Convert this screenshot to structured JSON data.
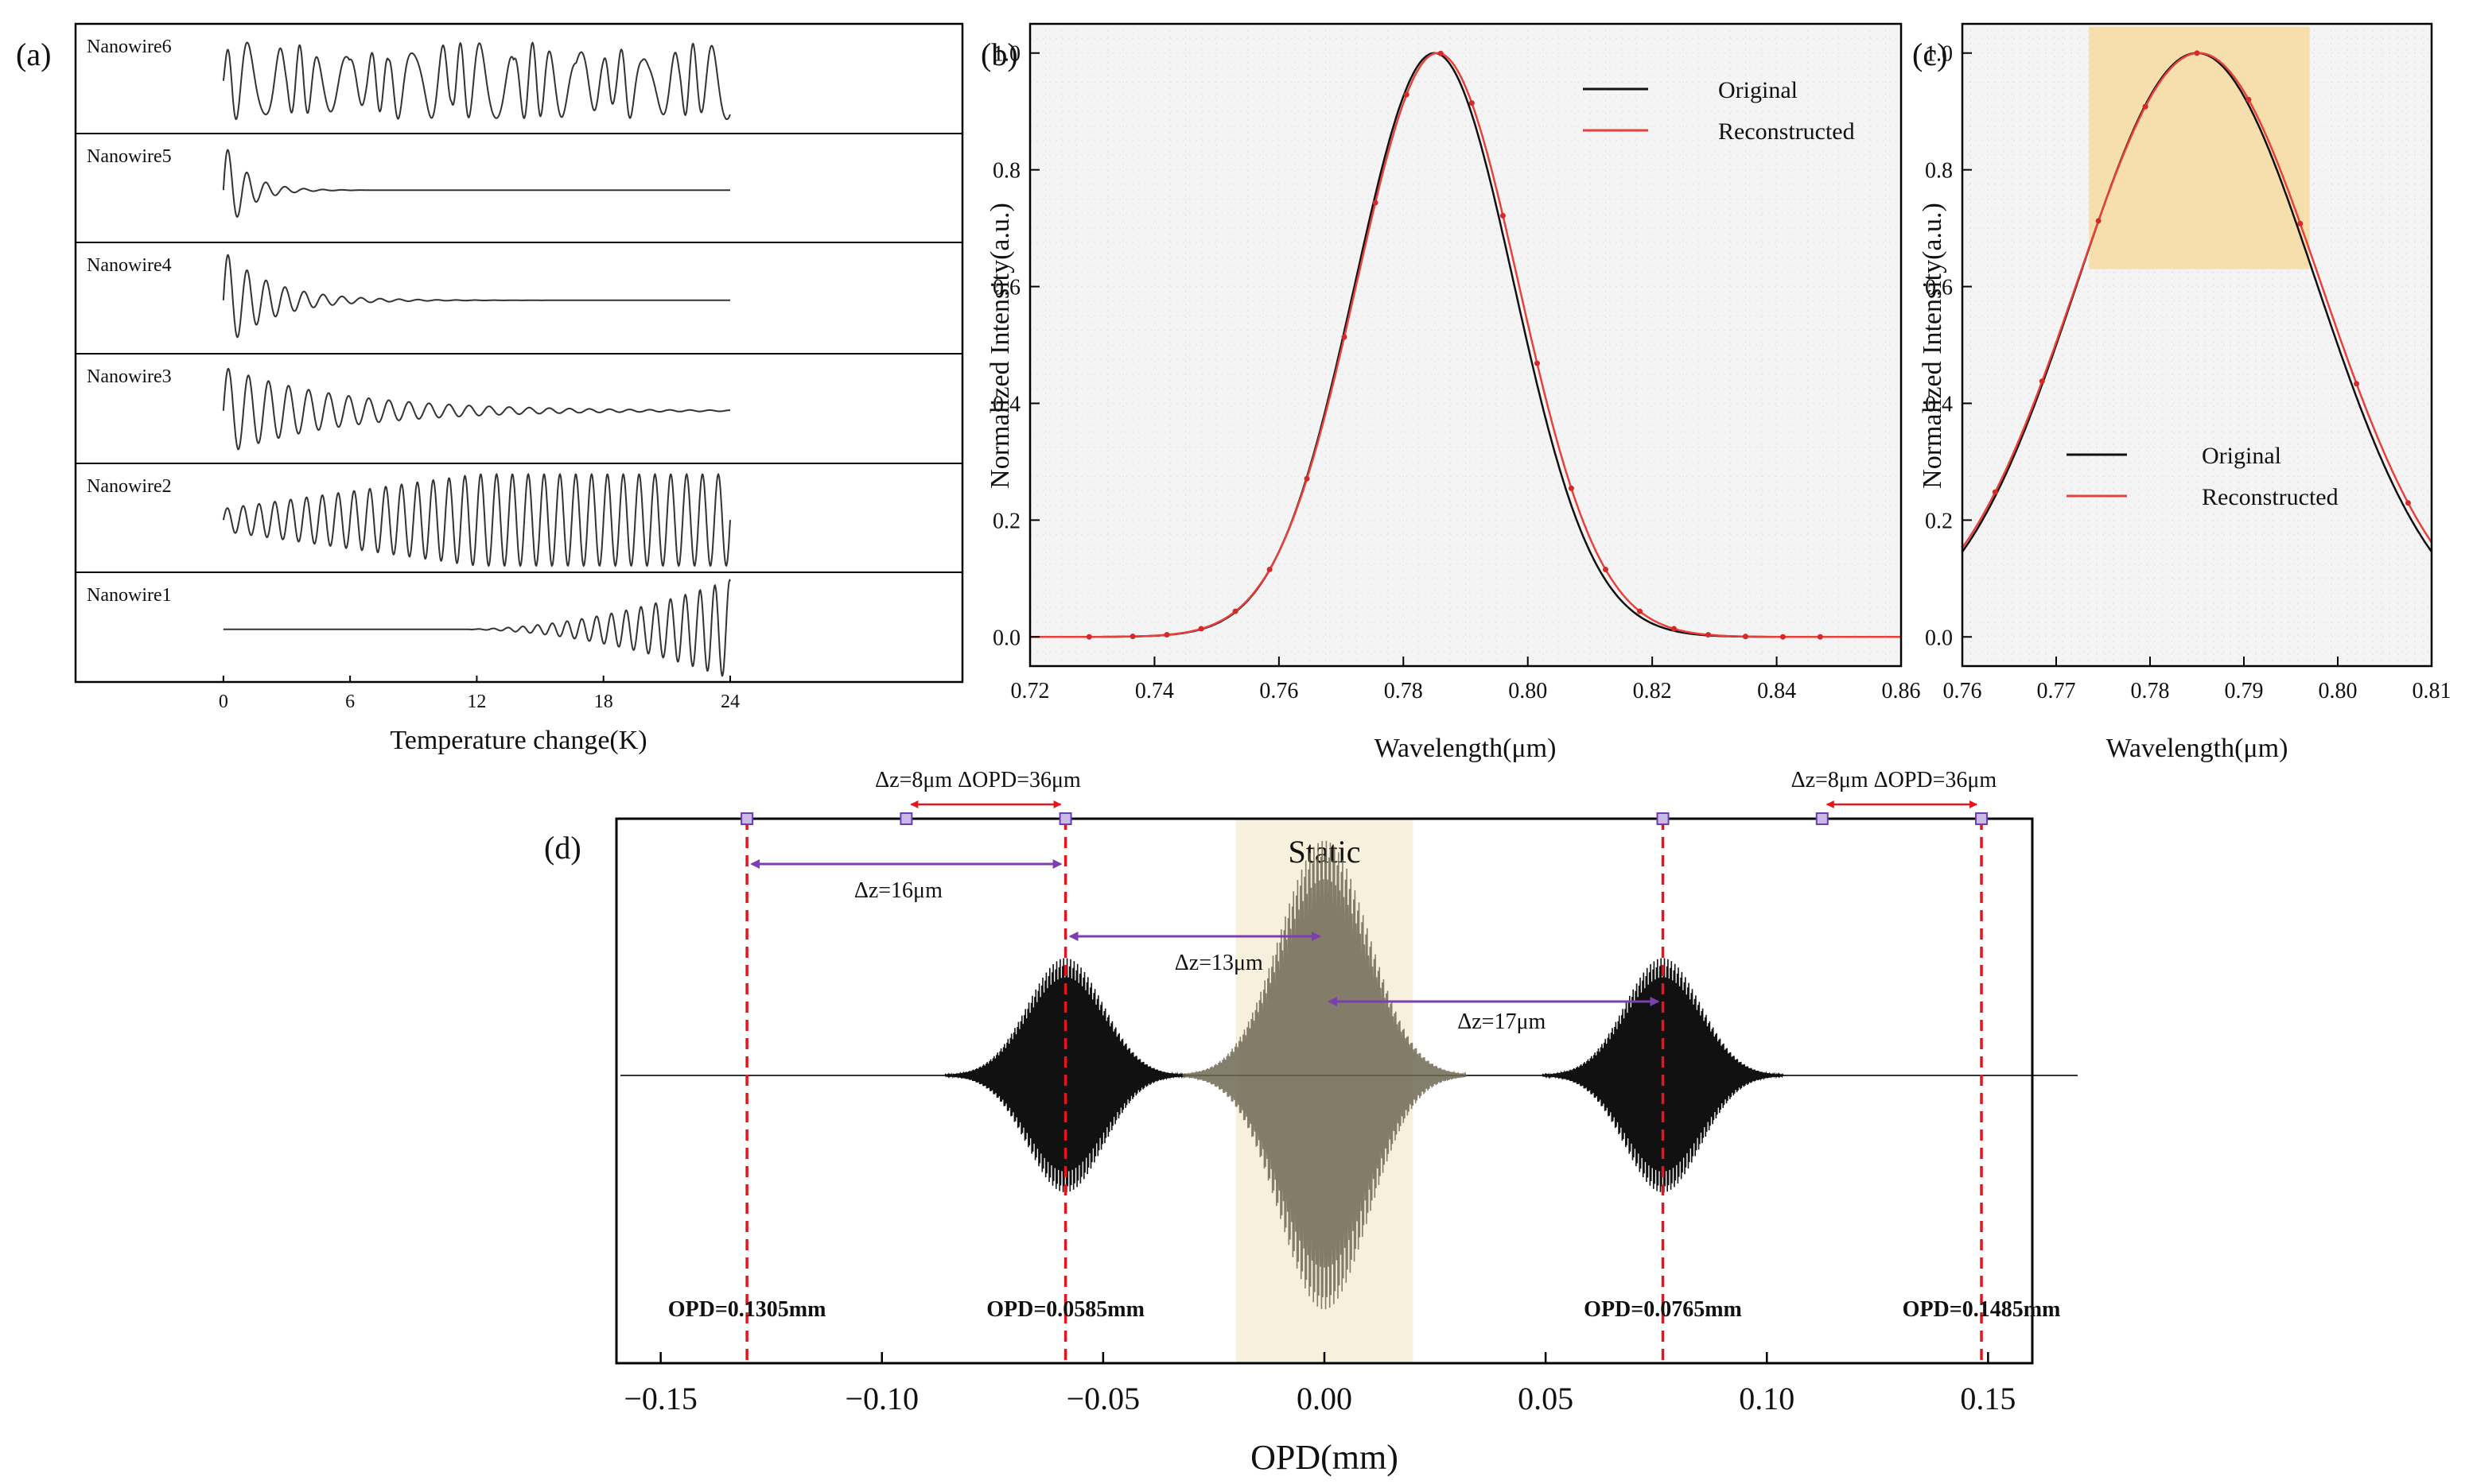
{
  "colors": {
    "original": "#111111",
    "reconstructed": "#e8403a",
    "marker": "#d42a2a",
    "highlight_c": "#f6dfad",
    "highlight_d": "#f7f0dc",
    "dashed": "#e8141c",
    "arrow_red": "#e8141c",
    "arrow_purple": "#7b3fb0",
    "frame": "#000000"
  },
  "panels": {
    "a": {
      "label": "(a)"
    },
    "b": {
      "label": "(b)"
    },
    "c": {
      "label": "(c)"
    },
    "d": {
      "label": "(d)"
    }
  },
  "chart_data": [
    {
      "id": "a",
      "type": "line",
      "title": "",
      "xlabel": "Temperature change(K)",
      "ylabel": "",
      "xlim": [
        -7,
        35
      ],
      "xticks": [
        0,
        6,
        12,
        18,
        24
      ],
      "grid": false,
      "series": [
        {
          "name": "Nanowire6",
          "signal": "random-oscillation",
          "period": 1.1,
          "envelope": "constant",
          "amplitude": 0.35
        },
        {
          "name": "Nanowire5",
          "signal": "damped",
          "period": 0.9,
          "envelope": "decay",
          "decay": 1.1,
          "amplitude": 0.45
        },
        {
          "name": "Nanowire4",
          "signal": "damped",
          "period": 0.9,
          "envelope": "decay",
          "decay": 2.2,
          "amplitude": 0.45
        },
        {
          "name": "Nanowire3",
          "signal": "damped",
          "period": 0.95,
          "envelope": "decay",
          "decay": 5.5,
          "amplitude": 0.4
        },
        {
          "name": "Nanowire2",
          "signal": "growing",
          "period": 0.75,
          "envelope": "growth",
          "amplitude": 0.42
        },
        {
          "name": "Nanowire1",
          "signal": "growing",
          "period": 0.7,
          "envelope": "late-growth",
          "amplitude": 0.45
        }
      ]
    },
    {
      "id": "b",
      "type": "line",
      "title": "",
      "xlabel": "Wavelength(μm)",
      "ylabel": "Normalized Intensity(a.u.)",
      "xlim": [
        0.72,
        0.86
      ],
      "ylim": [
        -0.05,
        1.05
      ],
      "xticks": [
        "0.72",
        "0.74",
        "0.76",
        "0.78",
        "0.80",
        "0.82",
        "0.84",
        "0.86"
      ],
      "yticks": [
        "0.0",
        "0.2",
        "0.4",
        "0.6",
        "0.8",
        "1.0"
      ],
      "grid": true,
      "legend": "top-right",
      "series": [
        {
          "name": "Original",
          "center": 0.785,
          "fwhm": 0.03
        },
        {
          "name": "Reconstructed",
          "center": 0.7855,
          "fwhm": 0.0306,
          "markers": [
            0.7295,
            0.7365,
            0.742,
            0.7475,
            0.753,
            0.7585,
            0.7645,
            0.7705,
            0.7755,
            0.7805,
            0.786,
            0.791,
            0.796,
            0.8015,
            0.807,
            0.8125,
            0.818,
            0.8235,
            0.829,
            0.835,
            0.841,
            0.847
          ]
        }
      ]
    },
    {
      "id": "c",
      "type": "line",
      "title": "",
      "xlabel": "Wavelength(μm)",
      "ylabel": "Normalized Intensity(a.u.)",
      "xlim": [
        0.76,
        0.81
      ],
      "ylim": [
        -0.05,
        1.05
      ],
      "xticks": [
        "0.76",
        "0.77",
        "0.78",
        "0.79",
        "0.80",
        "0.81"
      ],
      "yticks": [
        "0.0",
        "0.2",
        "0.4",
        "0.6",
        "0.8",
        "1.0"
      ],
      "grid": true,
      "legend": "center-right",
      "highlight": {
        "x": [
          0.7735,
          0.797
        ],
        "y": [
          0.63,
          1.045
        ]
      },
      "series": [
        {
          "name": "Original",
          "center": 0.785,
          "fwhm": 0.03
        },
        {
          "name": "Reconstructed",
          "center": 0.7852,
          "fwhm": 0.0306,
          "markers": [
            0.7635,
            0.7685,
            0.7745,
            0.7795,
            0.785,
            0.7905,
            0.796,
            0.802,
            0.8075
          ]
        }
      ]
    },
    {
      "id": "d",
      "type": "line",
      "title": "",
      "xlabel": "OPD(mm)",
      "ylabel": "",
      "xlim": [
        -0.16,
        0.16
      ],
      "xticks": [
        "−0.15",
        "−0.10",
        "−0.05",
        "0.00",
        "0.05",
        "0.10",
        "0.15"
      ],
      "grid": false,
      "highlight": {
        "x": [
          -0.02,
          0.02
        ],
        "label": "Static"
      },
      "packets": [
        {
          "center": -0.0585,
          "width": 0.0085,
          "amplitude": 0.45
        },
        {
          "center": 0.0,
          "width": 0.01,
          "amplitude": 0.9
        },
        {
          "center": 0.0765,
          "width": 0.0085,
          "amplitude": 0.45
        }
      ],
      "dashed_lines": [
        {
          "x": -0.1305,
          "label": "OPD=0.1305mm"
        },
        {
          "x": -0.0585,
          "label": "OPD=0.0585mm"
        },
        {
          "x": 0.0765,
          "label": "OPD=0.0765mm"
        },
        {
          "x": 0.1485,
          "label": "OPD=0.1485mm"
        }
      ],
      "annotations": [
        {
          "text": "Δz=8μm ΔOPD=36μm",
          "from": -0.0945,
          "to": -0.0585,
          "color": "red",
          "row": "top"
        },
        {
          "text": "Δz=8μm ΔOPD=36μm",
          "from": 0.1125,
          "to": 0.1485,
          "color": "red",
          "row": "top"
        },
        {
          "text": "Δz=16μm",
          "from": -0.1305,
          "to": -0.0585,
          "color": "purple",
          "row": 1
        },
        {
          "text": "Δz=13μm",
          "from": -0.0585,
          "to": 0.0,
          "color": "purple",
          "row": 2
        },
        {
          "text": "Δz=17μm",
          "from": 0.0,
          "to": 0.0765,
          "color": "purple",
          "row": 3
        }
      ],
      "square_markers": [
        -0.1305,
        -0.0945,
        -0.0585,
        0.0765,
        0.1125,
        0.1485
      ]
    }
  ]
}
